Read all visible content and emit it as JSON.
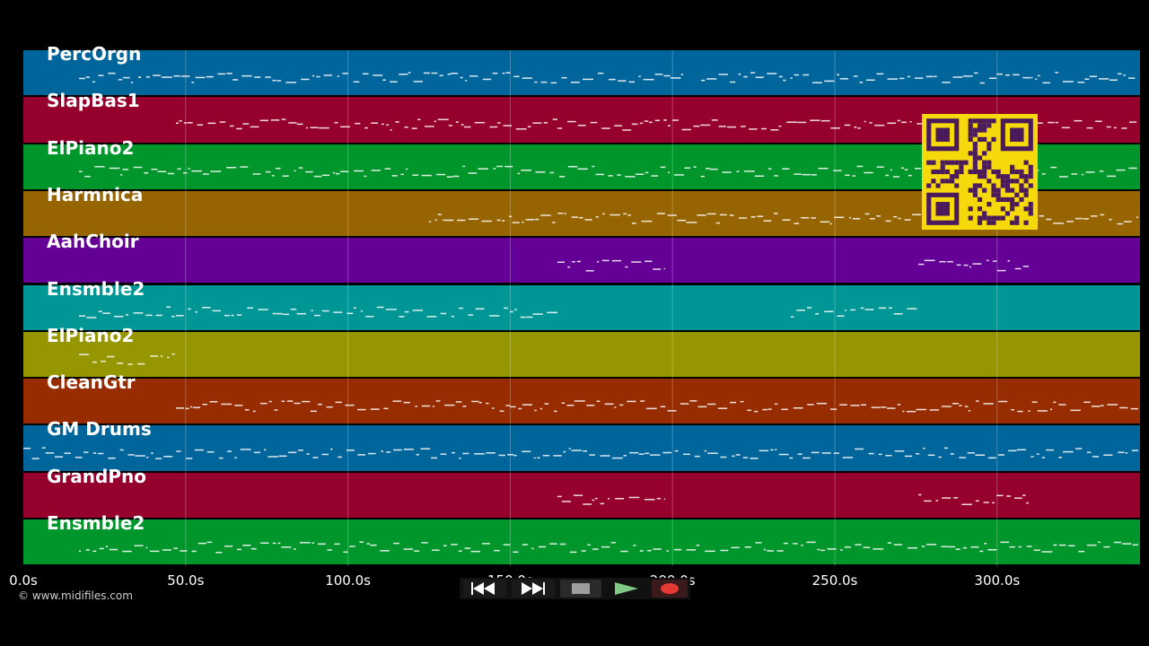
{
  "tracks": [
    {
      "name": "PercOrgn",
      "color": "#00659b"
    },
    {
      "name": "SlapBas1",
      "color": "#96002c"
    },
    {
      "name": "ElPiano2",
      "color": "#00962c"
    },
    {
      "name": "Harmnica",
      "color": "#966400"
    },
    {
      "name": "AahChoir",
      "color": "#640096"
    },
    {
      "name": "Ensmble2",
      "color": "#009696"
    },
    {
      "name": "ElPiano2",
      "color": "#969600"
    },
    {
      "name": "CleanGtr",
      "color": "#962c00"
    },
    {
      "name": "GM Drums",
      "color": "#00659b"
    },
    {
      "name": "GrandPno",
      "color": "#96002c"
    },
    {
      "name": "Ensmble2",
      "color": "#00962c"
    }
  ],
  "timeline": {
    "ticks": [
      "0.0s",
      "50.0s",
      "100.0s",
      "150.0s",
      "200.0s",
      "250.0s",
      "300.0s"
    ]
  },
  "copyright": "© www.midifiles.com",
  "transport": {
    "rewind_icon": "rewind-icon",
    "fastforward_icon": "fast-forward-icon",
    "stop_icon": "stop-icon",
    "play_icon": "play-icon",
    "record_icon": "record-icon",
    "play_color": "#2e7d32",
    "record_color": "#e53935"
  },
  "qr_code": {
    "icon": "qr-code-icon",
    "fg": "#4a1a5c",
    "bg": "#f5d90a"
  }
}
